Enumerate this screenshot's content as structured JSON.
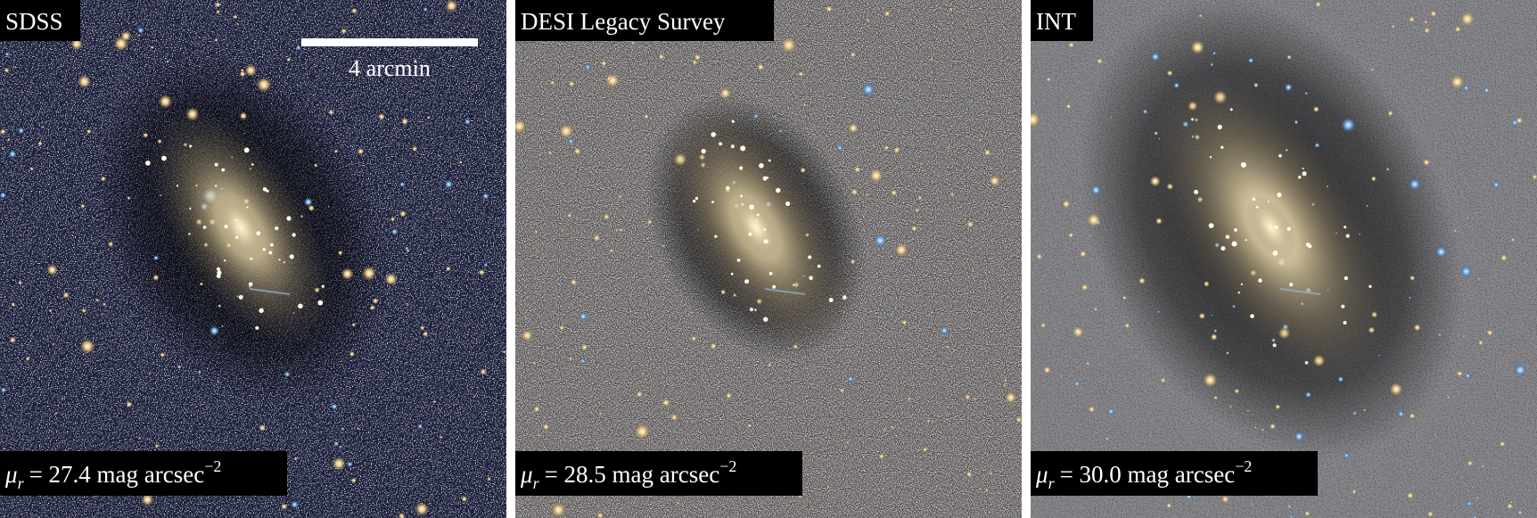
{
  "scale_bar": {
    "label": "4 arcmin"
  },
  "panels": [
    {
      "label": "SDSS",
      "depth": {
        "symbol": "μ",
        "subscript": "r",
        "text": "= 27.4 mag arcsec",
        "superscript": "−2"
      }
    },
    {
      "label": "DESI Legacy Survey",
      "depth": {
        "symbol": "μ",
        "subscript": "r",
        "text": "= 28.5 mag arcsec",
        "superscript": "−2"
      }
    },
    {
      "label": "INT",
      "depth": {
        "symbol": "μ",
        "subscript": "r",
        "text": "= 30.0 mag arcsec",
        "superscript": "−2"
      }
    }
  ]
}
